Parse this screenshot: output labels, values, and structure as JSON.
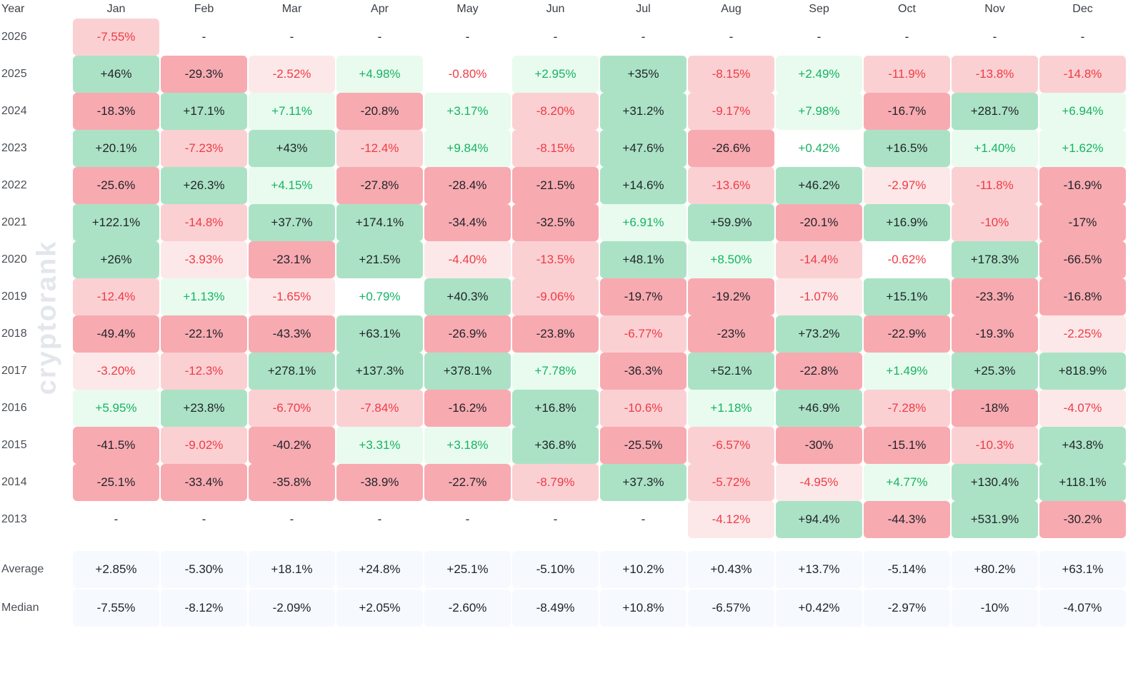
{
  "watermark": "cryptorank",
  "colors": {
    "pos_strong_bg": "#abe2c5",
    "pos_mid_bg": "#cdf0da",
    "pos_light_bg": "#e8fbee",
    "neg_strong_bg": "#f8aab1",
    "neg_mid_bg": "#fbd0d3",
    "neg_light_bg": "#fde8e9",
    "pos_text": "#16b364",
    "neg_text": "#ef3b44",
    "strong_text": "#1f2328",
    "stat_bg": "#f6f9fe"
  },
  "chart_data": {
    "type": "heatmap",
    "row_header": "Year",
    "columns": [
      "Jan",
      "Feb",
      "Mar",
      "Apr",
      "May",
      "Jun",
      "Jul",
      "Aug",
      "Sep",
      "Oct",
      "Nov",
      "Dec"
    ],
    "rows": [
      {
        "year": "2026",
        "cells": [
          "-7.55%",
          "-",
          "-",
          "-",
          "-",
          "-",
          "-",
          "-",
          "-",
          "-",
          "-",
          "-"
        ]
      },
      {
        "year": "2025",
        "cells": [
          "+46%",
          "-29.3%",
          "-2.52%",
          "+4.98%",
          "-0.80%",
          "+2.95%",
          "+35%",
          "-8.15%",
          "+2.49%",
          "-11.9%",
          "-13.8%",
          "-14.8%"
        ]
      },
      {
        "year": "2024",
        "cells": [
          "-18.3%",
          "+17.1%",
          "+7.11%",
          "-20.8%",
          "+3.17%",
          "-8.20%",
          "+31.2%",
          "-9.17%",
          "+7.98%",
          "-16.7%",
          "+281.7%",
          "+6.94%"
        ]
      },
      {
        "year": "2023",
        "cells": [
          "+20.1%",
          "-7.23%",
          "+43%",
          "-12.4%",
          "+9.84%",
          "-8.15%",
          "+47.6%",
          "-26.6%",
          "+0.42%",
          "+16.5%",
          "+1.40%",
          "+1.62%"
        ]
      },
      {
        "year": "2022",
        "cells": [
          "-25.6%",
          "+26.3%",
          "+4.15%",
          "-27.8%",
          "-28.4%",
          "-21.5%",
          "+14.6%",
          "-13.6%",
          "+46.2%",
          "-2.97%",
          "-11.8%",
          "-16.9%"
        ]
      },
      {
        "year": "2021",
        "cells": [
          "+122.1%",
          "-14.8%",
          "+37.7%",
          "+174.1%",
          "-34.4%",
          "-32.5%",
          "+6.91%",
          "+59.9%",
          "-20.1%",
          "+16.9%",
          "-10%",
          "-17%"
        ]
      },
      {
        "year": "2020",
        "cells": [
          "+26%",
          "-3.93%",
          "-23.1%",
          "+21.5%",
          "-4.40%",
          "-13.5%",
          "+48.1%",
          "+8.50%",
          "-14.4%",
          "-0.62%",
          "+178.3%",
          "-66.5%"
        ]
      },
      {
        "year": "2019",
        "cells": [
          "-12.4%",
          "+1.13%",
          "-1.65%",
          "+0.79%",
          "+40.3%",
          "-9.06%",
          "-19.7%",
          "-19.2%",
          "-1.07%",
          "+15.1%",
          "-23.3%",
          "-16.8%"
        ]
      },
      {
        "year": "2018",
        "cells": [
          "-49.4%",
          "-22.1%",
          "-43.3%",
          "+63.1%",
          "-26.9%",
          "-23.8%",
          "-6.77%",
          "-23%",
          "+73.2%",
          "-22.9%",
          "-19.3%",
          "-2.25%"
        ]
      },
      {
        "year": "2017",
        "cells": [
          "-3.20%",
          "-12.3%",
          "+278.1%",
          "+137.3%",
          "+378.1%",
          "+7.78%",
          "-36.3%",
          "+52.1%",
          "-22.8%",
          "+1.49%",
          "+25.3%",
          "+818.9%"
        ]
      },
      {
        "year": "2016",
        "cells": [
          "+5.95%",
          "+23.8%",
          "-6.70%",
          "-7.84%",
          "-16.2%",
          "+16.8%",
          "-10.6%",
          "+1.18%",
          "+46.9%",
          "-7.28%",
          "-18%",
          "-4.07%"
        ]
      },
      {
        "year": "2015",
        "cells": [
          "-41.5%",
          "-9.02%",
          "-40.2%",
          "+3.31%",
          "+3.18%",
          "+36.8%",
          "-25.5%",
          "-6.57%",
          "-30%",
          "-15.1%",
          "-10.3%",
          "+43.8%"
        ]
      },
      {
        "year": "2014",
        "cells": [
          "-25.1%",
          "-33.4%",
          "-35.8%",
          "-38.9%",
          "-22.7%",
          "-8.79%",
          "+37.3%",
          "-5.72%",
          "-4.95%",
          "+4.77%",
          "+130.4%",
          "+118.1%"
        ]
      },
      {
        "year": "2013",
        "cells": [
          "-",
          "-",
          "-",
          "-",
          "-",
          "-",
          "-",
          "-4.12%",
          "+94.4%",
          "-44.3%",
          "+531.9%",
          "-30.2%"
        ]
      }
    ],
    "summary": [
      {
        "label": "Average",
        "cells": [
          "+2.85%",
          "-5.30%",
          "+18.1%",
          "+24.8%",
          "+25.1%",
          "-5.10%",
          "+10.2%",
          "+0.43%",
          "+13.7%",
          "-5.14%",
          "+80.2%",
          "+63.1%"
        ]
      },
      {
        "label": "Median",
        "cells": [
          "-7.55%",
          "-8.12%",
          "-2.09%",
          "+2.05%",
          "-2.60%",
          "-8.49%",
          "+10.8%",
          "-6.57%",
          "+0.42%",
          "-2.97%",
          "-10%",
          "-4.07%"
        ]
      }
    ]
  }
}
